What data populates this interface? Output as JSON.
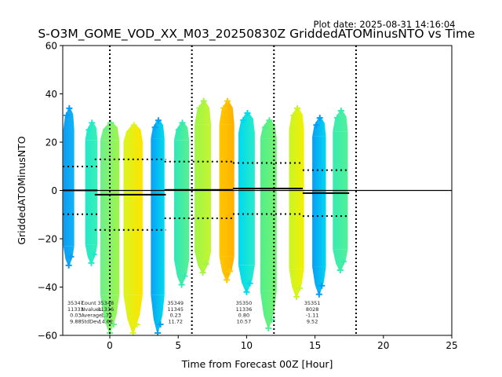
{
  "chart_data": {
    "type": "scatter",
    "title": "S-O3M_GOME_VOD_XX_M03_20250830Z GriddedATOMinusNTO vs Time",
    "subtitle": "Plot date: 2025-08-31 14:16:04",
    "xlabel": "Time from Forecast 00Z [Hour]",
    "ylabel": "GriddedATOMinusNTO",
    "xlim": [
      -3.44,
      25
    ],
    "ylim": [
      -60,
      60
    ],
    "xticks": [
      0,
      5,
      10,
      15,
      20,
      25
    ],
    "yticks": [
      -60,
      -40,
      -20,
      0,
      20,
      40,
      60
    ],
    "xtick_labels": [
      "0",
      "5",
      "10",
      "15",
      "20",
      "25"
    ],
    "ytick_labels": [
      "−60",
      "−40",
      "−20",
      "0",
      "20",
      "40",
      "60"
    ],
    "grid": false,
    "zero_line": 0,
    "vertical_dotted_lines": [
      0,
      6,
      12,
      18
    ],
    "bands": [
      {
        "x0": -3.4,
        "x1": -2.6,
        "ymin": -32,
        "ymax": 35,
        "color": "#0a9cf5",
        "color2": "#12b4f5"
      },
      {
        "x0": -1.8,
        "x1": -0.9,
        "ymin": -31,
        "ymax": 29,
        "color": "#22e8cc",
        "color2": "#3af0b4"
      },
      {
        "x0": -0.7,
        "x1": 0.7,
        "ymin": -60,
        "ymax": 29,
        "color": "#6cf08c",
        "color2": "#a0f54a"
      },
      {
        "x0": 1.0,
        "x1": 2.4,
        "ymin": -60,
        "ymax": 28,
        "color": "#d8f520",
        "color2": "#ffe400"
      },
      {
        "x0": 3.0,
        "x1": 4.0,
        "ymin": -60,
        "ymax": 30,
        "color": "#0aa0f5",
        "color2": "#00dcec"
      },
      {
        "x0": 4.7,
        "x1": 5.8,
        "ymin": -40,
        "ymax": 29,
        "color": "#30e8b8",
        "color2": "#58f090"
      },
      {
        "x0": 6.2,
        "x1": 7.4,
        "ymin": -35,
        "ymax": 38,
        "color": "#a0f548",
        "color2": "#c4f530"
      },
      {
        "x0": 8.0,
        "x1": 9.1,
        "ymin": -38,
        "ymax": 38,
        "color": "#ffc800",
        "color2": "#ffb000"
      },
      {
        "x0": 9.4,
        "x1": 10.6,
        "ymin": -43,
        "ymax": 33,
        "color": "#00d8f0",
        "color2": "#28ecc8"
      },
      {
        "x0": 11.0,
        "x1": 12.2,
        "ymin": -58,
        "ymax": 30,
        "color": "#50f08c",
        "color2": "#78f270"
      },
      {
        "x0": 13.1,
        "x1": 14.2,
        "ymin": -45,
        "ymax": 35,
        "color": "#c8f528",
        "color2": "#f4f000"
      },
      {
        "x0": 14.8,
        "x1": 15.8,
        "ymin": -44,
        "ymax": 31,
        "color": "#0a9cf5",
        "color2": "#00d8f0"
      },
      {
        "x0": 16.3,
        "x1": 17.4,
        "ymin": -34,
        "ymax": 34,
        "color": "#38ecb0",
        "color2": "#52f098"
      }
    ],
    "segments": [
      {
        "x0": -3.44,
        "x1": -0.9,
        "mean": 0.03,
        "std": 9.88,
        "count": "35347",
        "nvalues": "11333",
        "average": "0.03",
        "stddev": "9.88",
        "label_x": -2.5
      },
      {
        "x0": -1.1,
        "x1": 4.1,
        "mean": -1.74,
        "std": 14.62,
        "count": "35348",
        "nvalues": "11336",
        "average": "-1.74",
        "stddev": "14.62",
        "label_x": -0.3
      },
      {
        "x0": 4.0,
        "x1": 9.0,
        "mean": 0.23,
        "std": 11.72,
        "count": "35349",
        "nvalues": "11345",
        "average": "0.23",
        "stddev": "11.72",
        "label_x": 4.8
      },
      {
        "x0": 9.0,
        "x1": 14.1,
        "mean": 0.8,
        "std": 10.57,
        "count": "35350",
        "nvalues": "11336",
        "average": "0.80",
        "stddev": "10.57",
        "label_x": 9.8
      },
      {
        "x0": 14.1,
        "x1": 17.5,
        "mean": -1.11,
        "std": 9.52,
        "count": "35351",
        "nvalues": "8028",
        "average": "-1.11",
        "stddev": "9.52",
        "label_x": 14.8
      }
    ],
    "stat_labels": [
      "Count",
      "Nvalues",
      "Average",
      "StdDev"
    ]
  }
}
